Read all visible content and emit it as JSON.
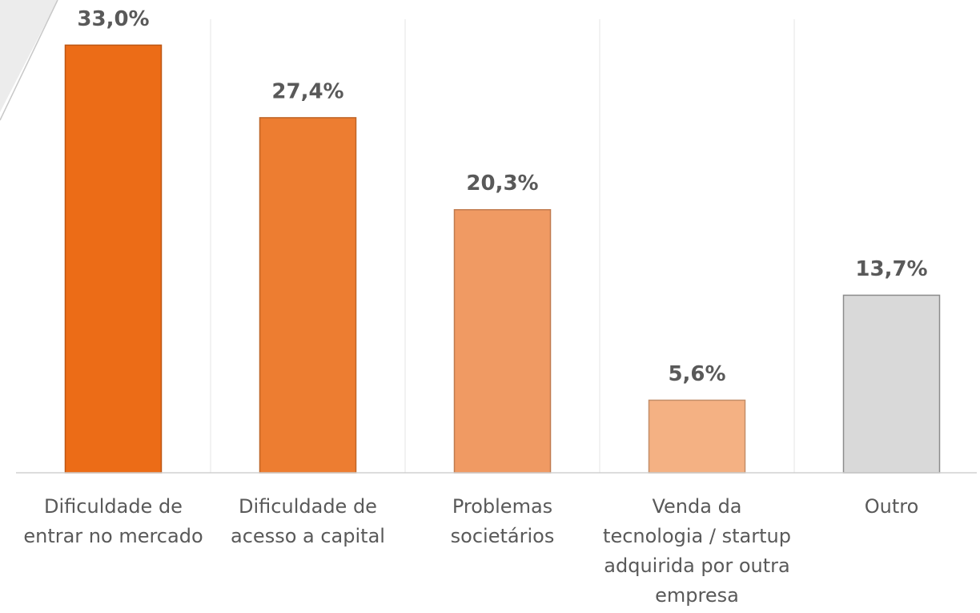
{
  "chart_data": {
    "type": "bar",
    "categories": [
      "Dificuldade de entrar no mercado",
      "Dificuldade de acesso a capital",
      "Problemas societários",
      "Venda da tecnologia / startup adquirida por outra empresa",
      "Outro"
    ],
    "values": [
      33.0,
      27.4,
      20.3,
      5.6,
      13.7
    ],
    "value_labels": [
      "33,0%",
      "27,4%",
      "20,3%",
      "5,6%",
      "13,7%"
    ],
    "colors": [
      "#ec6c17",
      "#ed7d31",
      "#f09a63",
      "#f4b183",
      "#d9d9d9"
    ],
    "ylim": [
      0,
      35
    ]
  }
}
